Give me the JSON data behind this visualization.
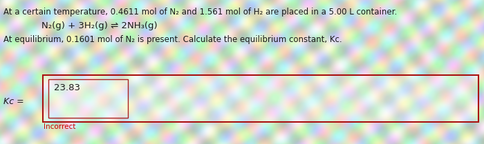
{
  "text_color": "#1a1a1a",
  "line1": "At a certain temperature, 0.4611 mol of N₂ and 1.561 mol of H₂ are placed in a 5.00 L container.",
  "line2": "N₂(g) + 3H₂(g) ⇌ 2NH₃(g)",
  "line3": "At equilibrium, 0.1601 mol of N₂ is present. Calculate the equilibrium constant, Kᴄ.",
  "kc_label": "Kᴄ =",
  "answer": "23.83",
  "incorrect_text": "Incorrect",
  "incorrect_color": "#cc0000",
  "box_edge_color": "#aa1111",
  "inner_box_edge_color": "#aa2222",
  "font_size_main": 8.5,
  "font_size_equation": 9.5,
  "font_size_answer": 9.5,
  "font_size_incorrect": 7.5,
  "font_size_kc": 9.0
}
